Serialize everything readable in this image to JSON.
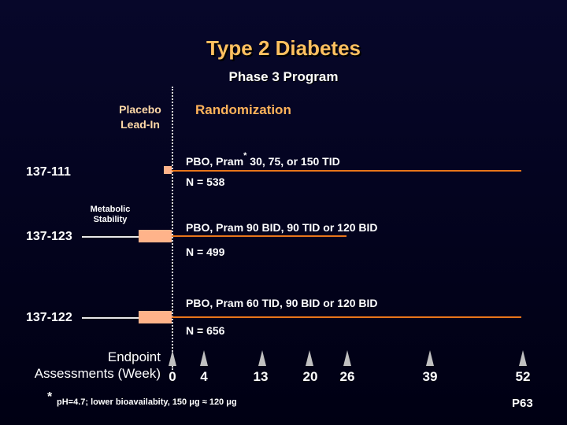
{
  "title": "Type 2 Diabetes",
  "subtitle": "Phase 3 Program",
  "placebo_lead_in": "Placebo\nLead-In",
  "randomization": "Randomization",
  "metabolic_stability": "Metabolic\nStability",
  "studies": [
    {
      "id": "137-111",
      "arm_prefix": "PBO, Pram",
      "arm_marker": "*",
      "arm_suffix": " 30, 75, or 150 TID",
      "n": "N = 538"
    },
    {
      "id": "137-123",
      "arm": "PBO, Pram 90 BID, 90 TID or 120 BID",
      "n": "N = 499"
    },
    {
      "id": "137-122",
      "arm": "PBO, Pram 60 TID, 90 BID or 120 BID",
      "n": "N = 656"
    }
  ],
  "endpoint_label": "Endpoint\nAssessments (Week)",
  "weeks": [
    "0",
    "4",
    "13",
    "20",
    "26",
    "39",
    "52"
  ],
  "footnote_marker": "*",
  "footnote": "pH=4.7; lower bioavailabity, 150 μg ≈ 120 μg",
  "slide_code": "P63",
  "colors": {
    "title": "#ffc060",
    "accent_line": "#e8751a",
    "lead_block": "#ffb38a",
    "background": "#000018"
  }
}
